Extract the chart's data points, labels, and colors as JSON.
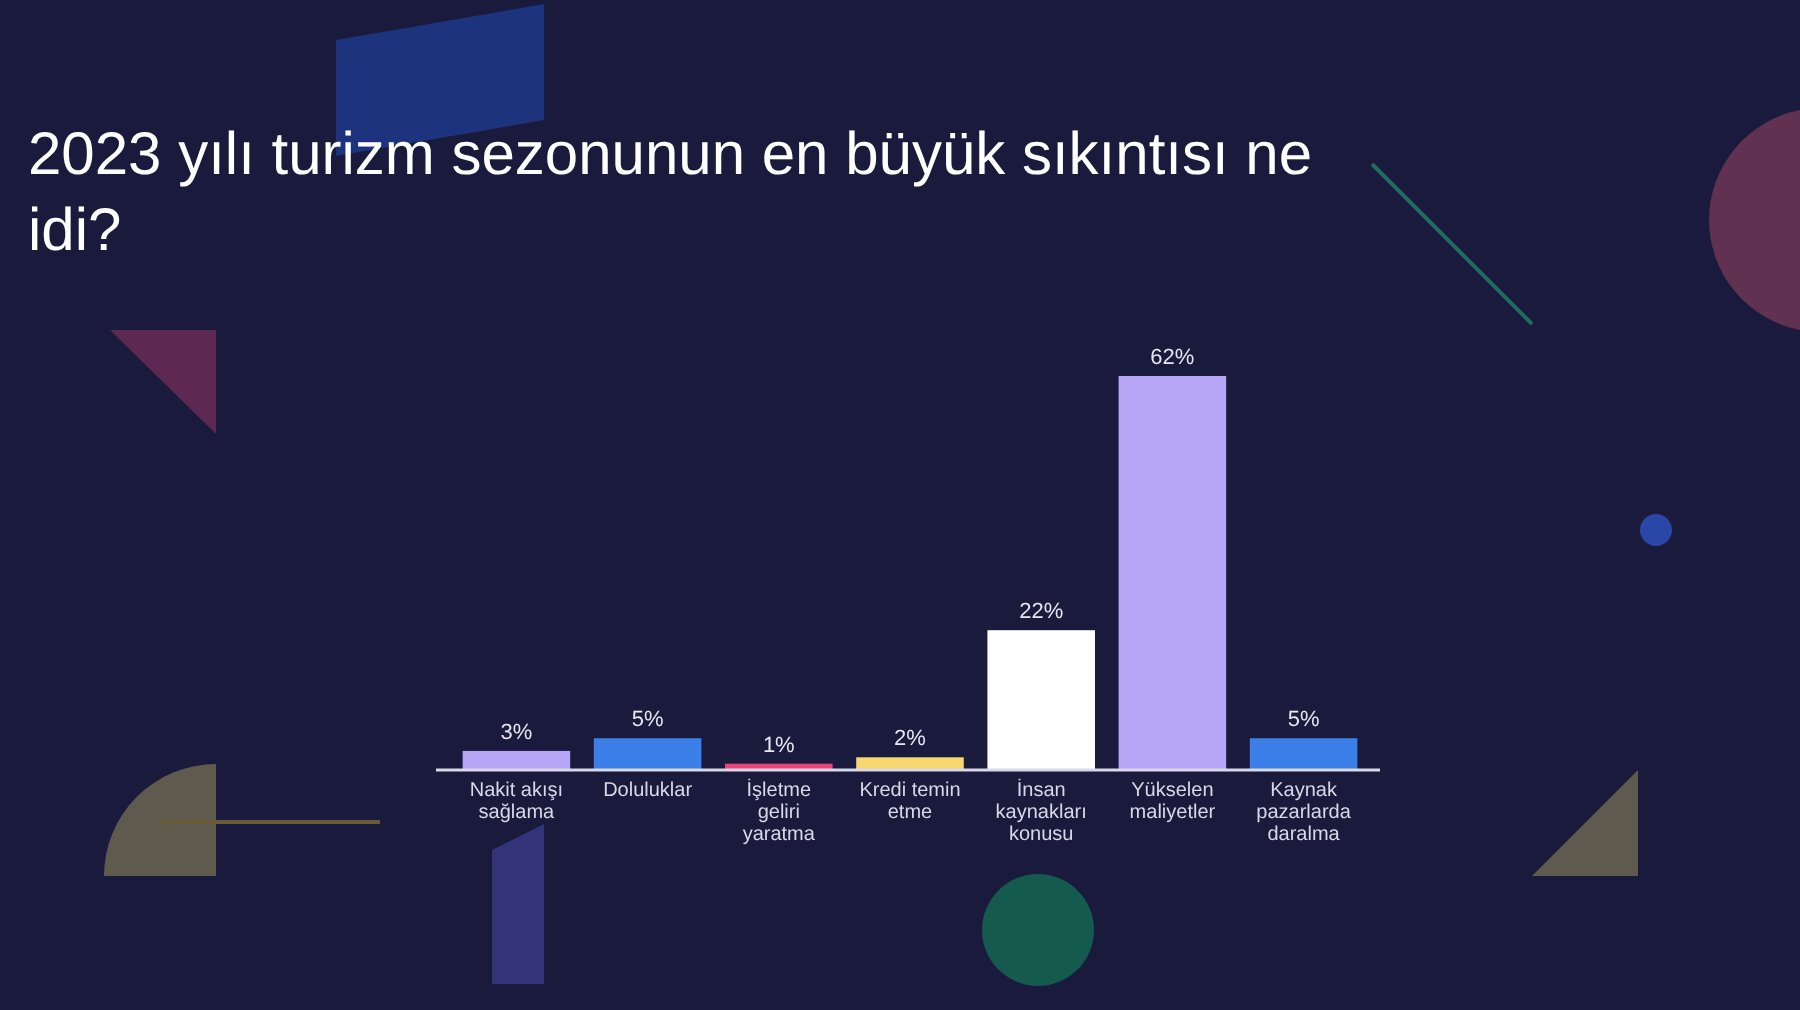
{
  "chart_data": {
    "type": "bar",
    "title": "2023 yılı turizm sezonunun en büyük sıkıntısı ne idi?",
    "categories": [
      "Nakit akışı sağlama",
      "Doluluklar",
      "İşletme geliri yaratma",
      "Kredi temin etme",
      "İnsan kaynakları konusu",
      "Yükselen maliyetler",
      "Kaynak pazarlarda daralma"
    ],
    "values": [
      3,
      5,
      1,
      2,
      22,
      62,
      5
    ],
    "colors": [
      "#b7a6f5",
      "#3d7fe8",
      "#e8457a",
      "#f5d76e",
      "#ffffff",
      "#b7a6f5",
      "#3d7fe8"
    ],
    "value_labels": [
      "3%",
      "5%",
      "1%",
      "2%",
      "22%",
      "62%",
      "5%"
    ]
  }
}
